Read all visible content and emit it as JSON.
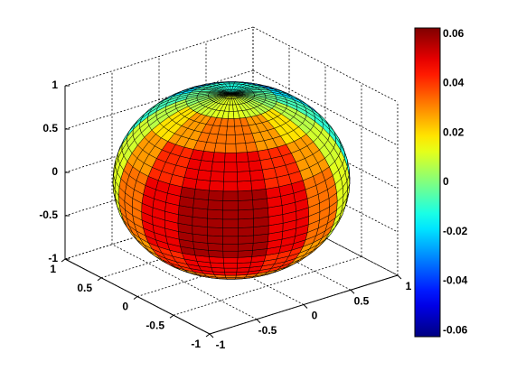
{
  "chart_data": {
    "type": "surface",
    "shape": "sphere",
    "xlim": [
      -1,
      1
    ],
    "ylim": [
      -1,
      1
    ],
    "zlim": [
      -1,
      1
    ],
    "xticks": [
      -1,
      -0.5,
      0,
      0.5,
      1
    ],
    "yticks": [
      -1,
      -0.5,
      0,
      0.5,
      1
    ],
    "zticks": [
      -1,
      -0.5,
      0,
      0.5,
      1
    ],
    "grid": true,
    "colormap": "jet",
    "clim": [
      -0.0625,
      0.0625
    ],
    "cticks": [
      -0.06,
      -0.04,
      -0.02,
      0,
      0.02,
      0.04,
      0.06
    ],
    "color_values": [
      [
        0.012,
        0.01,
        0.007,
        0.002,
        -0.002,
        -0.007,
        -0.01,
        -0.012,
        -0.012,
        -0.01,
        -0.007,
        -0.002,
        0.002,
        0.007,
        0.01,
        0.012
      ],
      [
        0.033,
        0.028,
        0.019,
        0.007,
        -0.007,
        -0.019,
        -0.028,
        -0.033,
        -0.033,
        -0.028,
        -0.019,
        -0.007,
        0.007,
        0.019,
        0.028,
        0.033
      ],
      [
        0.049,
        0.042,
        0.028,
        0.01,
        -0.01,
        -0.028,
        -0.042,
        -0.049,
        -0.049,
        -0.042,
        -0.028,
        -0.01,
        0.01,
        0.028,
        0.042,
        0.049
      ],
      [
        0.058,
        0.049,
        0.033,
        0.012,
        -0.012,
        -0.033,
        -0.049,
        -0.058,
        -0.058,
        -0.049,
        -0.033,
        -0.012,
        0.012,
        0.033,
        0.049,
        0.058
      ],
      [
        0.058,
        0.049,
        0.033,
        0.012,
        -0.012,
        -0.033,
        -0.049,
        -0.058,
        -0.058,
        -0.049,
        -0.033,
        -0.012,
        0.012,
        0.033,
        0.049,
        0.058
      ],
      [
        0.049,
        0.042,
        0.028,
        0.01,
        -0.01,
        -0.028,
        -0.042,
        -0.049,
        -0.049,
        -0.042,
        -0.028,
        -0.01,
        0.01,
        0.028,
        0.042,
        0.049
      ],
      [
        0.033,
        0.028,
        0.019,
        0.007,
        -0.007,
        -0.019,
        -0.028,
        -0.033,
        -0.033,
        -0.028,
        -0.019,
        -0.007,
        0.007,
        0.019,
        0.028,
        0.033
      ],
      [
        0.012,
        0.01,
        0.007,
        0.002,
        -0.002,
        -0.007,
        -0.01,
        -0.012,
        -0.012,
        -0.01,
        -0.007,
        -0.002,
        0.002,
        0.007,
        0.01,
        0.012
      ]
    ]
  }
}
